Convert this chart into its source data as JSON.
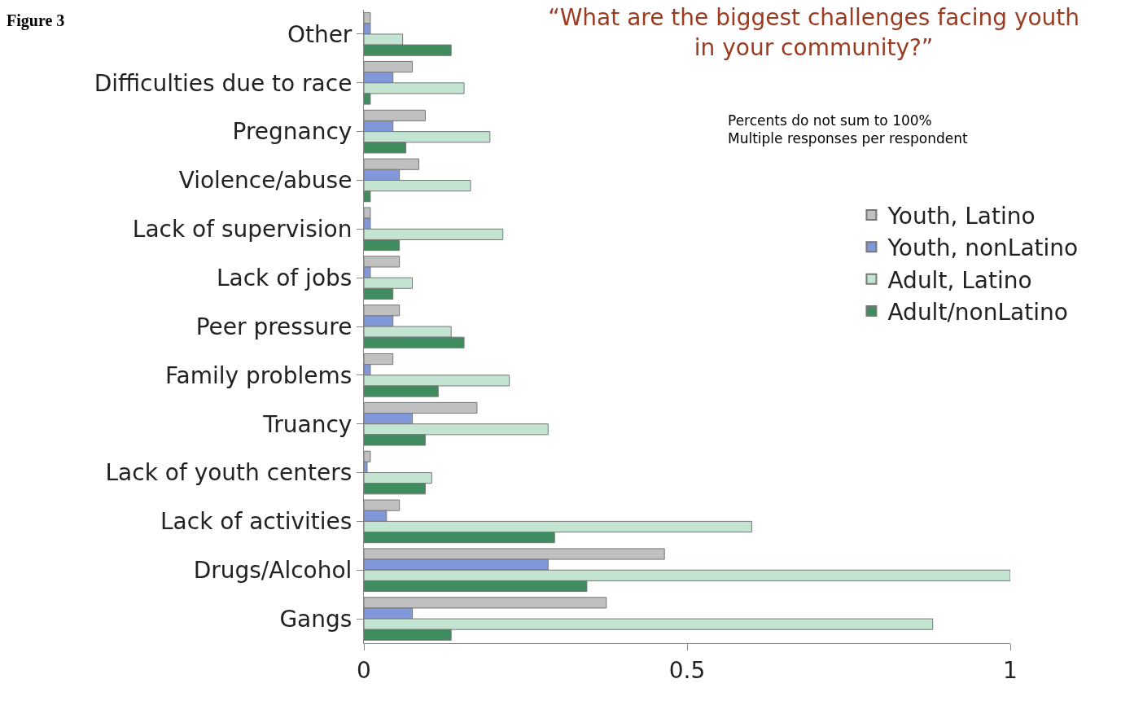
{
  "chart_data": {
    "type": "bar",
    "orientation": "horizontal",
    "title": "“What are the biggest challenges facing youth in your community?”",
    "categories": [
      "Other",
      "Difficulties due to race",
      "Pregnancy",
      "Violence/abuse",
      "Lack of supervision",
      "Lack of jobs",
      "Peer pressure",
      "Family problems",
      "Truancy",
      "Lack of youth centers",
      "Lack of activities",
      "Drugs/Alcohol",
      "Gangs"
    ],
    "series": [
      {
        "name": "Youth, Latino",
        "color": "#c0c0c0",
        "values": [
          0.01,
          0.075,
          0.095,
          0.085,
          0.01,
          0.055,
          0.055,
          0.045,
          0.175,
          0.01,
          0.055,
          0.465,
          0.375
        ]
      },
      {
        "name": "Youth, nonLatino",
        "color": "#8098da",
        "values": [
          0.01,
          0.045,
          0.045,
          0.055,
          0.01,
          0.01,
          0.045,
          0.01,
          0.075,
          0.005,
          0.035,
          0.285,
          0.075
        ]
      },
      {
        "name": "Adult, Latino",
        "color": "#c3e4d0",
        "values": [
          0.06,
          0.155,
          0.195,
          0.165,
          0.215,
          0.075,
          0.135,
          0.225,
          0.285,
          0.105,
          0.6,
          1.0,
          0.88
        ]
      },
      {
        "name": "Adult/nonLatino",
        "color": "#3f8c5f",
        "values": [
          0.135,
          0.01,
          0.065,
          0.01,
          0.055,
          0.045,
          0.155,
          0.115,
          0.095,
          0.095,
          0.295,
          0.345,
          0.135
        ]
      }
    ],
    "xlim": [
      0,
      1
    ],
    "xticks": [
      0,
      0.5,
      1
    ],
    "legend": "right",
    "annotations": [
      "Figure 3",
      "Percents do not sum to 100%\nMultiple responses per respondent"
    ]
  }
}
